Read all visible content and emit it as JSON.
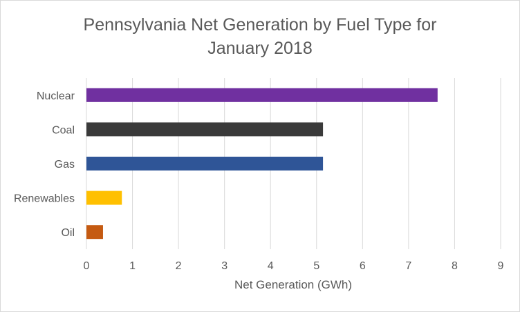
{
  "chart_data": {
    "type": "bar",
    "orientation": "horizontal",
    "title": "Pennsylvania Net Generation by Fuel Type for January 2018",
    "xlabel": "Net Generation (GWh)",
    "ylabel": "",
    "xlim": [
      0,
      9
    ],
    "x_ticks": [
      "0",
      "1",
      "2",
      "3",
      "4",
      "5",
      "6",
      "7",
      "8",
      "9"
    ],
    "grid": true,
    "legend": "none",
    "categories": [
      "Nuclear",
      "Coal",
      "Gas",
      "Renewables",
      "Oil"
    ],
    "values": [
      7.63,
      5.14,
      5.14,
      0.77,
      0.36
    ],
    "colors": [
      "#7030a0",
      "#3a3a3a",
      "#2f5597",
      "#ffc000",
      "#c55a11"
    ]
  }
}
